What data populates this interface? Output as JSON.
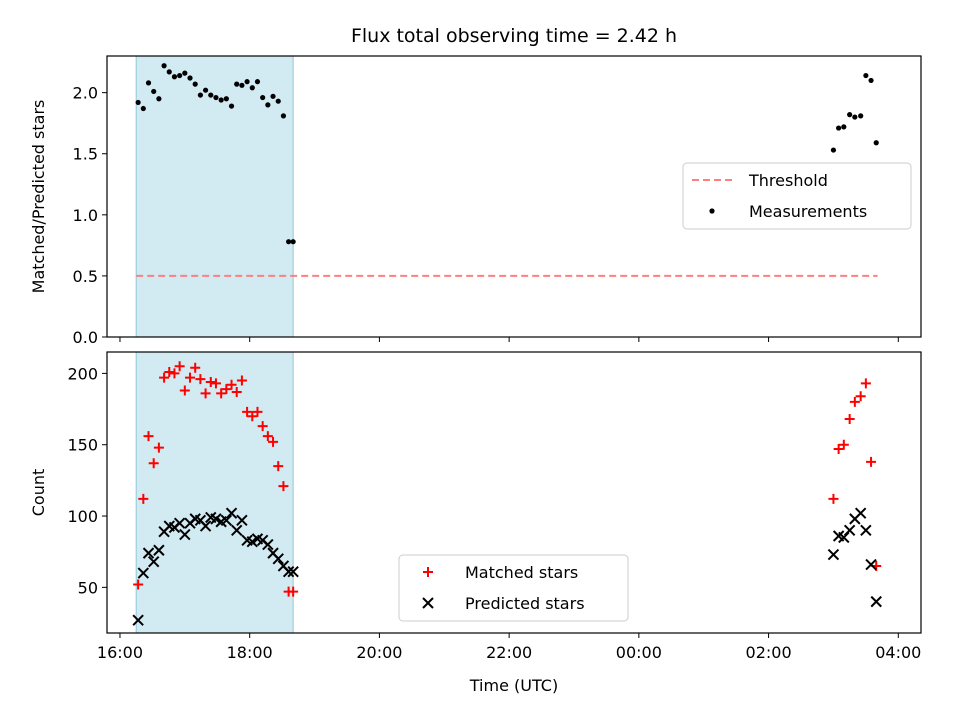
{
  "chart_data": [
    {
      "type": "scatter",
      "title": "Flux total observing time = 2.42 h",
      "xlabel": "",
      "ylabel": "Matched/Predicted stars",
      "ylim": [
        0,
        2.3
      ],
      "yticks": [
        0.0,
        0.5,
        1.0,
        1.5,
        2.0
      ],
      "ytick_labels": [
        "0.0",
        "0.5",
        "1.0",
        "1.5",
        "2.0"
      ],
      "xlim_hours": [
        15.8,
        28.35
      ],
      "xticks_hours": [
        16,
        18,
        20,
        22,
        24,
        26,
        28
      ],
      "xtick_labels": [
        "",
        "",
        "",
        "",
        "",
        "",
        ""
      ],
      "shaded_span_hours": [
        16.25,
        18.67
      ],
      "shade_color": "#add8e6",
      "threshold": {
        "name": "Threshold",
        "value": 0.5,
        "x_range_hours": [
          16.25,
          27.68
        ],
        "color": "#ff7f7f"
      },
      "legend": {
        "position": "center-right",
        "entries": [
          "Threshold",
          "Measurements"
        ]
      },
      "series": [
        {
          "name": "Measurements",
          "marker": "dot",
          "color": "#000000",
          "x_hours": [
            16.28,
            16.36,
            16.44,
            16.52,
            16.6,
            16.68,
            16.76,
            16.84,
            16.92,
            17.0,
            17.08,
            17.16,
            17.24,
            17.32,
            17.4,
            17.48,
            17.56,
            17.64,
            17.72,
            17.8,
            17.88,
            17.96,
            18.04,
            18.12,
            18.2,
            18.28,
            18.36,
            18.44,
            18.52,
            18.6,
            18.67,
            27.0,
            27.08,
            27.16,
            27.25,
            27.33,
            27.42,
            27.5,
            27.58,
            27.66
          ],
          "y": [
            1.92,
            1.87,
            2.08,
            2.01,
            1.95,
            2.22,
            2.17,
            2.13,
            2.14,
            2.16,
            2.12,
            2.07,
            1.98,
            2.02,
            1.98,
            1.96,
            1.94,
            1.95,
            1.89,
            2.07,
            2.06,
            2.09,
            2.04,
            2.09,
            1.96,
            1.9,
            1.97,
            1.93,
            1.81,
            0.78,
            0.78,
            1.53,
            1.71,
            1.72,
            1.82,
            1.8,
            1.81,
            2.14,
            2.1,
            1.59
          ]
        }
      ]
    },
    {
      "type": "scatter",
      "title": "",
      "xlabel": "Time (UTC)",
      "ylabel": "Count",
      "ylim": [
        18,
        215
      ],
      "yticks": [
        50,
        100,
        150,
        200
      ],
      "ytick_labels": [
        "50",
        "100",
        "150",
        "200"
      ],
      "xlim_hours": [
        15.8,
        28.35
      ],
      "xticks_hours": [
        16,
        18,
        20,
        22,
        24,
        26,
        28
      ],
      "xtick_labels": [
        "16:00",
        "18:00",
        "20:00",
        "22:00",
        "00:00",
        "02:00",
        "04:00"
      ],
      "shaded_span_hours": [
        16.25,
        18.67
      ],
      "shade_color": "#add8e6",
      "legend": {
        "position": "lower-center",
        "entries": [
          "Matched stars",
          "Predicted stars"
        ]
      },
      "series": [
        {
          "name": "Matched stars",
          "marker": "plus",
          "color": "#ff0000",
          "x_hours": [
            16.28,
            16.36,
            16.44,
            16.52,
            16.6,
            16.68,
            16.76,
            16.84,
            16.92,
            17.0,
            17.08,
            17.16,
            17.24,
            17.32,
            17.4,
            17.48,
            17.56,
            17.64,
            17.72,
            17.8,
            17.88,
            17.96,
            18.04,
            18.12,
            18.2,
            18.28,
            18.36,
            18.44,
            18.52,
            18.6,
            18.67,
            27.0,
            27.08,
            27.16,
            27.25,
            27.33,
            27.42,
            27.5,
            27.58,
            27.66
          ],
          "y": [
            52,
            112,
            156,
            137,
            148,
            197,
            201,
            200,
            205,
            188,
            197,
            204,
            196,
            186,
            194,
            193,
            186,
            189,
            192,
            187,
            195,
            173,
            170,
            173,
            163,
            156,
            152,
            135,
            121,
            47,
            47,
            112,
            147,
            150,
            168,
            180,
            184,
            193,
            138,
            65
          ]
        },
        {
          "name": "Predicted stars",
          "marker": "x",
          "color": "#000000",
          "x_hours": [
            16.28,
            16.36,
            16.44,
            16.52,
            16.6,
            16.68,
            16.76,
            16.84,
            16.92,
            17.0,
            17.08,
            17.16,
            17.24,
            17.32,
            17.4,
            17.48,
            17.56,
            17.64,
            17.72,
            17.8,
            17.88,
            17.96,
            18.04,
            18.12,
            18.2,
            18.28,
            18.36,
            18.44,
            18.52,
            18.6,
            18.67,
            27.0,
            27.08,
            27.16,
            27.25,
            27.33,
            27.42,
            27.5,
            27.58,
            27.66
          ],
          "y": [
            27,
            60,
            74,
            68,
            76,
            89,
            93,
            92,
            95,
            87,
            95,
            98,
            97,
            93,
            99,
            98,
            96,
            97,
            102,
            90,
            97,
            83,
            82,
            84,
            83,
            80,
            74,
            70,
            65,
            61,
            61,
            73,
            86,
            85,
            90,
            98,
            102,
            90,
            66,
            40
          ]
        }
      ]
    }
  ]
}
